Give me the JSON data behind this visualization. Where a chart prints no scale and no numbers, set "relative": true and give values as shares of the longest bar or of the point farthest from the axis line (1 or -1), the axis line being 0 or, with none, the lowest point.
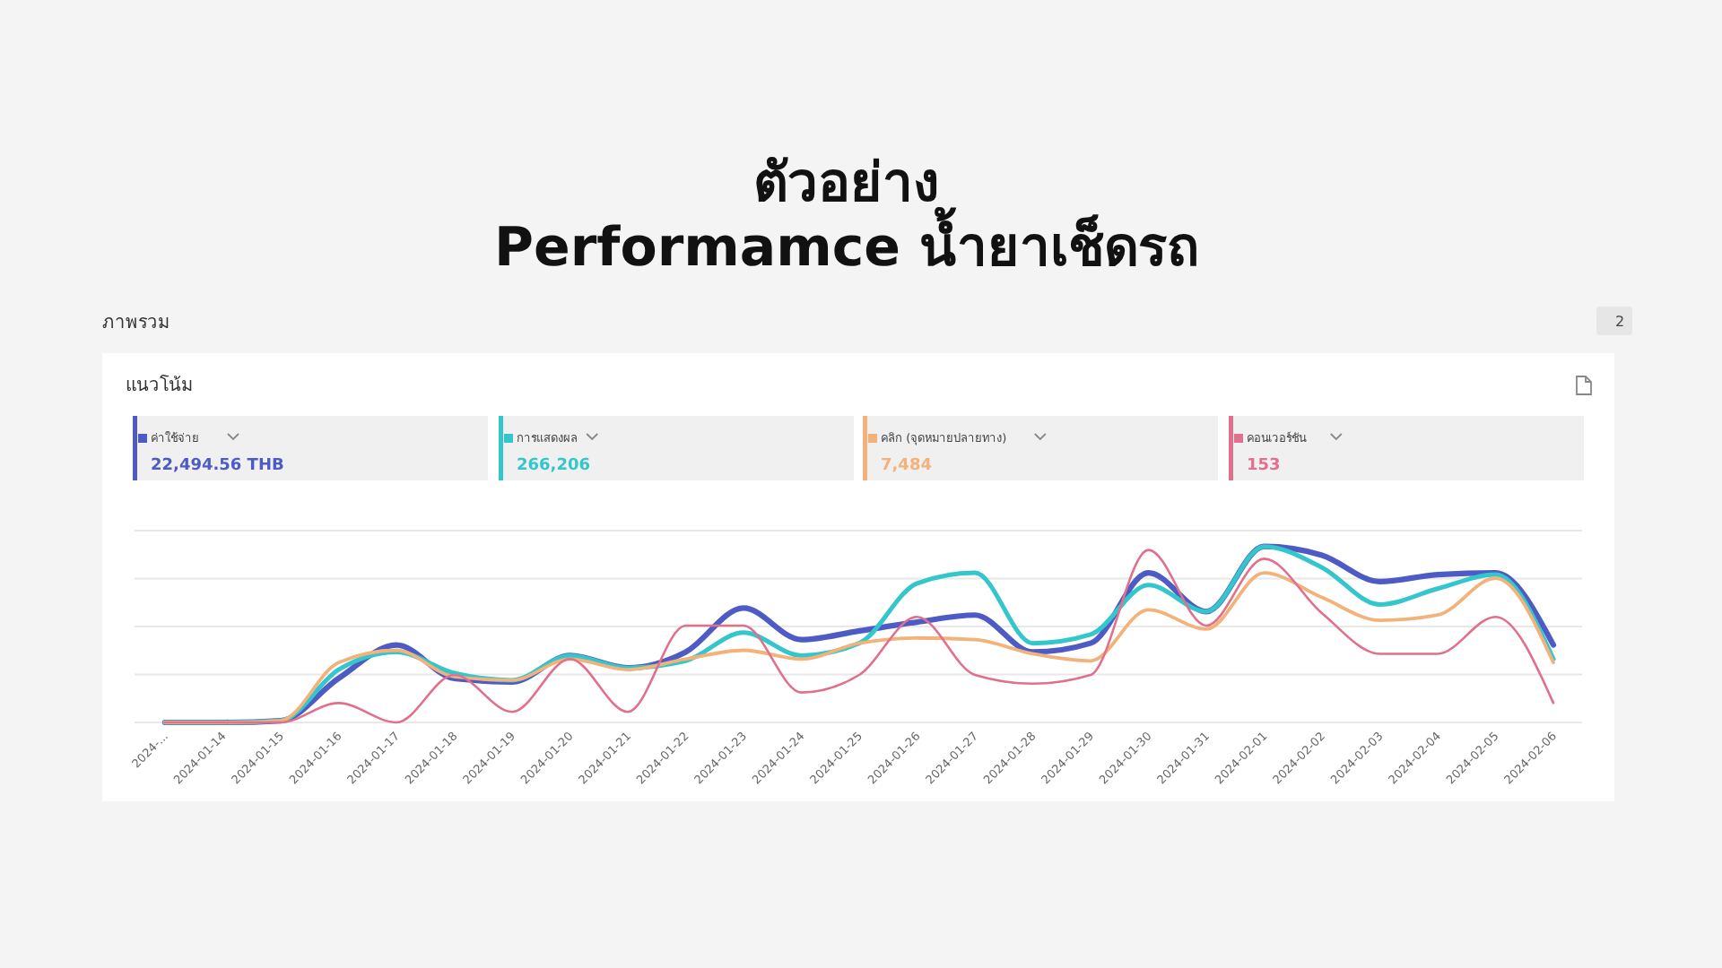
{
  "chart_data": {
    "type": "line",
    "title": "ตัวอย่าง\nPerformamce น้ำยาเช็ดรถ",
    "subtitle": "ภาพรวม",
    "relative": true,
    "grid": "y",
    "legend": "top",
    "annotations": [
      "แนวโน้ม",
      "22,494.56 THB",
      "266,206",
      "7,484",
      "153",
      "2"
    ],
    "categories": [
      "2024-...",
      "2024-01-14",
      "2024-01-15",
      "2024-01-16",
      "2024-01-17",
      "2024-01-18",
      "2024-01-19",
      "2024-01-20",
      "2024-01-21",
      "2024-01-22",
      "2024-01-23",
      "2024-01-24",
      "2024-01-25",
      "2024-01-26",
      "2024-01-27",
      "2024-01-28",
      "2024-01-29",
      "2024-01-30",
      "2024-01-31",
      "2024-02-01",
      "2024-02-02",
      "2024-02-03",
      "2024-02-04",
      "2024-02-05",
      "2024-02-06"
    ],
    "series": [
      {
        "name": "ค่าใช้จ่าย",
        "color": "#4f5bc4",
        "values": [
          0,
          0,
          0.01,
          0.25,
          0.44,
          0.25,
          0.23,
          0.38,
          0.31,
          0.4,
          0.65,
          0.47,
          0.52,
          0.57,
          0.61,
          0.4,
          0.45,
          0.85,
          0.63,
          1,
          0.95,
          0.8,
          0.84,
          0.85,
          0.44
        ]
      },
      {
        "name": "การแสดงผล",
        "color": "#33c6cc",
        "values": [
          0,
          0,
          0.01,
          0.3,
          0.4,
          0.28,
          0.24,
          0.38,
          0.31,
          0.35,
          0.51,
          0.38,
          0.45,
          0.79,
          0.85,
          0.45,
          0.5,
          0.78,
          0.63,
          1,
          0.88,
          0.67,
          0.76,
          0.84,
          0.36
        ]
      },
      {
        "name": "คลิก (จุดหมายปลายทาง)",
        "color": "#f2b27a",
        "values": [
          0,
          0,
          0.01,
          0.34,
          0.41,
          0.26,
          0.24,
          0.36,
          0.3,
          0.36,
          0.41,
          0.36,
          0.45,
          0.48,
          0.47,
          0.39,
          0.35,
          0.64,
          0.53,
          0.85,
          0.71,
          0.58,
          0.61,
          0.82,
          0.34
        ]
      },
      {
        "name": "คอนเวอร์ชัน",
        "color": "#e0708c",
        "values": [
          0,
          0,
          0,
          0.11,
          0,
          0.27,
          0.06,
          0.36,
          0.06,
          0.55,
          0.55,
          0.17,
          0.27,
          0.6,
          0.27,
          0.22,
          0.27,
          0.98,
          0.55,
          0.93,
          0.62,
          0.39,
          0.39,
          0.6,
          0.11
        ]
      }
    ]
  }
}
